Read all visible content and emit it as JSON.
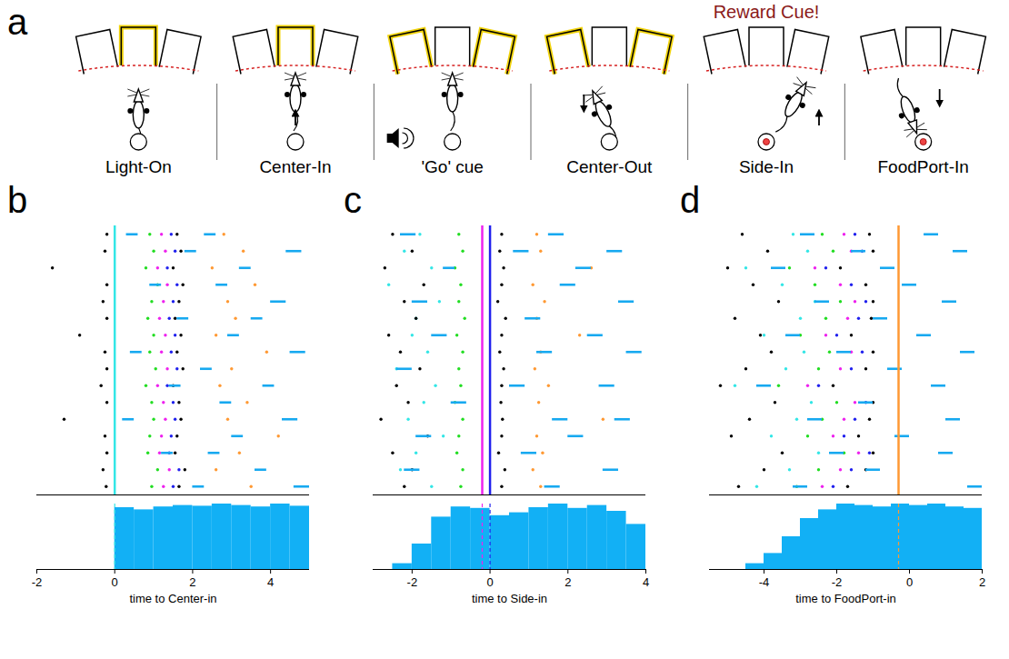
{
  "diagram": {
    "letter": "a",
    "phases": [
      "Light-On",
      "Center-In",
      "'Go' cue",
      "Center-Out",
      "Side-In",
      "FoodPort-In"
    ],
    "annotation": {
      "text": "Reward Cue!",
      "color": "#8b1a1a",
      "over": "Side-In"
    }
  },
  "chart_data": [
    {
      "type": "raster",
      "letter": "b",
      "xlabel": "time to Center-in",
      "xlim": [
        -2,
        5
      ],
      "xticks": [
        -2,
        0,
        2,
        4
      ],
      "tick_labels": "x",
      "lines": [
        {
          "x": 0,
          "color": "#33e6e6"
        }
      ],
      "series": [
        {
          "color": "#000000",
          "marker": "dot",
          "values": [
            -0.2,
            -0.25,
            -1.6,
            -0.2,
            -0.3,
            -0.2,
            -0.9,
            -0.25,
            -0.2,
            -0.35,
            -0.2,
            -1.3,
            -0.25,
            -0.2,
            -0.3,
            -0.22
          ]
        },
        {
          "color": "#22dd22",
          "marker": "dot",
          "values": [
            0.9,
            1.0,
            0.8,
            1.1,
            0.95,
            0.85,
            1.0,
            0.9,
            1.05,
            0.8,
            0.95,
            1.0,
            0.9,
            0.85,
            1.1,
            0.95
          ]
        },
        {
          "color": "#ee22ee",
          "marker": "dot",
          "values": [
            1.2,
            1.3,
            1.1,
            1.35,
            1.25,
            1.15,
            1.3,
            1.2,
            1.35,
            1.1,
            1.25,
            1.3,
            1.2,
            1.15,
            1.4,
            1.25
          ]
        },
        {
          "color": "#2020ee",
          "marker": "dot",
          "values": [
            1.45,
            1.55,
            1.35,
            1.6,
            1.5,
            1.4,
            1.55,
            1.45,
            1.6,
            1.35,
            1.5,
            1.55,
            1.45,
            1.4,
            1.65,
            1.5
          ]
        },
        {
          "color": "#000000",
          "marker": "dot",
          "values": [
            1.6,
            1.7,
            1.5,
            1.75,
            1.65,
            1.55,
            1.7,
            1.6,
            1.75,
            1.5,
            1.65,
            1.7,
            1.6,
            1.55,
            1.8,
            1.65
          ]
        },
        {
          "color": "#ff9933",
          "marker": "dot",
          "values": [
            2.8,
            3.3,
            2.5,
            3.6,
            2.9,
            3.1,
            2.6,
            3.9,
            3.0,
            2.7,
            3.4,
            2.9,
            4.2,
            3.2,
            2.6,
            3.5
          ]
        }
      ],
      "segments": {
        "color": "#17a9f0",
        "trial": [
          0,
          0,
          1,
          1,
          2,
          3,
          3,
          4,
          5,
          5,
          6,
          7,
          7,
          8,
          9,
          9,
          10,
          11,
          11,
          12,
          13,
          13,
          14,
          15,
          15
        ],
        "start": [
          0.3,
          2.3,
          1.8,
          4.4,
          3.2,
          0.9,
          2.6,
          4.0,
          1.6,
          3.5,
          2.9,
          0.4,
          4.5,
          2.2,
          1.4,
          3.8,
          2.7,
          0.2,
          4.3,
          3.0,
          1.2,
          2.4,
          3.6,
          2.0,
          4.6
        ],
        "end": [
          0.6,
          2.6,
          2.1,
          4.8,
          3.5,
          1.2,
          2.9,
          4.4,
          1.9,
          3.8,
          3.2,
          0.7,
          4.9,
          2.5,
          1.7,
          4.1,
          3.0,
          0.5,
          4.7,
          3.3,
          1.5,
          2.7,
          3.9,
          2.3,
          5.0
        ]
      },
      "histogram": {
        "color": "#12b0f5",
        "bins": [
          -2,
          -1.5,
          -1,
          -0.5,
          0,
          0.5,
          1,
          1.5,
          2,
          2.5,
          3,
          3.5,
          4,
          4.5,
          5
        ],
        "counts": [
          0,
          0,
          0,
          0,
          0.85,
          0.82,
          0.86,
          0.88,
          0.87,
          0.9,
          0.88,
          0.86,
          0.9,
          0.87
        ]
      }
    },
    {
      "type": "raster",
      "letter": "c",
      "xlabel": "time to Side-in",
      "xlim": [
        -3,
        4
      ],
      "xticks": [
        -2,
        0,
        2,
        4
      ],
      "tick_labels": "x",
      "lines": [
        {
          "x": -0.2,
          "color": "#ee22ee"
        },
        {
          "x": 0,
          "color": "#2020ee"
        }
      ],
      "series": [
        {
          "color": "#33e6e6",
          "marker": "dot",
          "values": [
            -1.8,
            -2.2,
            -1.5,
            -2.6,
            -1.3,
            -1.9,
            -2.0,
            -1.6,
            -2.4,
            -1.4,
            -1.7,
            -2.1,
            -1.2,
            -1.9,
            -2.3,
            -1.5
          ]
        },
        {
          "color": "#000000",
          "marker": "dot",
          "values": [
            -2.5,
            -2.0,
            -2.7,
            -1.7,
            -2.2,
            -1.9,
            -2.6,
            -2.3,
            -1.8,
            -2.4,
            -2.1,
            -2.8,
            -1.6,
            -2.5,
            -2.0,
            -2.2
          ]
        },
        {
          "color": "#22dd22",
          "marker": "dot",
          "values": [
            -0.8,
            -0.7,
            -0.9,
            -0.75,
            -0.8,
            -0.65,
            -0.85,
            -0.7,
            -0.8,
            -0.75,
            -0.9,
            -0.7,
            -0.8,
            -0.85,
            -0.7,
            -0.75
          ]
        },
        {
          "color": "#000000",
          "marker": "dot",
          "values": [
            0.3,
            0.25,
            0.35,
            0.3,
            0.2,
            0.4,
            0.3,
            0.25,
            0.35,
            0.3,
            0.28,
            0.32,
            0.3,
            0.22,
            0.38,
            0.3
          ]
        },
        {
          "color": "#ff9933",
          "marker": "dot",
          "values": [
            1.2,
            1.3,
            2.6,
            1.1,
            1.4,
            1.2,
            2.3,
            1.3,
            1.15,
            1.5,
            1.25,
            2.9,
            1.2,
            1.35,
            1.1,
            1.3
          ]
        }
      ],
      "segments": {
        "color": "#17a9f0",
        "trial": [
          0,
          0,
          1,
          1,
          2,
          2,
          3,
          4,
          4,
          5,
          6,
          6,
          7,
          7,
          8,
          9,
          9,
          10,
          11,
          11,
          12,
          12,
          13,
          14,
          14,
          15
        ],
        "start": [
          -2.3,
          1.5,
          0.6,
          3.0,
          -1.2,
          2.2,
          1.8,
          -2.0,
          3.3,
          0.9,
          -1.5,
          2.5,
          1.2,
          3.5,
          -2.4,
          0.5,
          2.8,
          -1.0,
          1.6,
          3.2,
          -1.9,
          2.0,
          0.8,
          -2.2,
          2.9,
          1.4
        ],
        "end": [
          -1.9,
          1.9,
          1.0,
          3.4,
          -0.9,
          2.6,
          2.2,
          -1.6,
          3.7,
          1.3,
          -1.1,
          2.9,
          1.6,
          3.9,
          -2.0,
          0.9,
          3.2,
          -0.6,
          2.0,
          3.6,
          -1.5,
          2.4,
          1.2,
          -1.8,
          3.3,
          1.8
        ]
      },
      "histogram": {
        "color": "#12b0f5",
        "bins": [
          -3,
          -2.5,
          -2,
          -1.5,
          -1,
          -0.5,
          0,
          0.5,
          1,
          1.5,
          2,
          2.5,
          3,
          3.5,
          4
        ],
        "counts": [
          0,
          0.08,
          0.35,
          0.72,
          0.86,
          0.84,
          0.74,
          0.78,
          0.85,
          0.9,
          0.84,
          0.88,
          0.8,
          0.62
        ]
      }
    },
    {
      "type": "raster",
      "letter": "d",
      "xlabel": "time to FoodPort-in",
      "xlim": [
        -5.5,
        2
      ],
      "xticks": [
        -4,
        -2,
        0,
        2
      ],
      "tick_labels": "x",
      "lines": [
        {
          "x": -0.3,
          "color": "#ff9933"
        }
      ],
      "series": [
        {
          "color": "#33e6e6",
          "marker": "dot",
          "values": [
            -3.2,
            -2.8,
            -4.5,
            -3.5,
            -2.6,
            -3.0,
            -4.0,
            -2.9,
            -3.4,
            -4.8,
            -2.7,
            -3.1,
            -3.8,
            -2.5,
            -3.3,
            -4.2
          ]
        },
        {
          "color": "#000000",
          "marker": "dot",
          "values": [
            -4.6,
            -3.9,
            -5.0,
            -4.3,
            -3.6,
            -4.8,
            -4.1,
            -3.8,
            -4.5,
            -5.2,
            -3.7,
            -4.4,
            -4.9,
            -3.5,
            -4.0,
            -4.7
          ]
        },
        {
          "color": "#22dd22",
          "marker": "dot",
          "values": [
            -2.4,
            -2.1,
            -3.3,
            -2.6,
            -1.9,
            -2.3,
            -3.0,
            -2.2,
            -2.5,
            -3.6,
            -2.0,
            -2.4,
            -2.8,
            -1.8,
            -2.5,
            -3.1
          ]
        },
        {
          "color": "#ee22ee",
          "marker": "dot",
          "values": [
            -1.8,
            -1.6,
            -2.6,
            -1.9,
            -1.5,
            -1.7,
            -2.3,
            -1.6,
            -1.9,
            -2.8,
            -1.5,
            -1.8,
            -2.1,
            -1.4,
            -1.9,
            -2.4
          ]
        },
        {
          "color": "#2020ee",
          "marker": "dot",
          "values": [
            -1.5,
            -1.3,
            -2.3,
            -1.6,
            -1.2,
            -1.4,
            -2.0,
            -1.3,
            -1.6,
            -2.5,
            -1.2,
            -1.5,
            -1.8,
            -1.1,
            -1.6,
            -2.1
          ]
        },
        {
          "color": "#000000",
          "marker": "dot",
          "values": [
            -1.1,
            -1.0,
            -1.9,
            -1.2,
            -1.0,
            -1.05,
            -1.6,
            -1.0,
            -1.2,
            -2.1,
            -1.0,
            -1.1,
            -1.4,
            -1.0,
            -1.2,
            -1.7
          ]
        }
      ],
      "segments": {
        "color": "#17a9f0",
        "trial": [
          0,
          0,
          1,
          1,
          2,
          2,
          3,
          4,
          4,
          5,
          6,
          6,
          7,
          7,
          8,
          9,
          9,
          10,
          11,
          11,
          12,
          13,
          13,
          14,
          15,
          15
        ],
        "start": [
          -3.0,
          0.4,
          -1.6,
          1.2,
          -3.8,
          -0.8,
          -0.2,
          -2.6,
          0.9,
          -1.0,
          -3.4,
          0.2,
          -2.0,
          1.4,
          -0.6,
          -4.2,
          0.6,
          -1.4,
          -2.8,
          1.0,
          -0.4,
          -2.2,
          0.8,
          -1.2,
          -3.2,
          1.6
        ],
        "end": [
          -2.6,
          0.8,
          -1.2,
          1.6,
          -3.4,
          -0.4,
          0.2,
          -2.2,
          1.3,
          -0.6,
          -3.0,
          0.6,
          -1.6,
          1.8,
          -0.2,
          -3.8,
          1.0,
          -1.0,
          -2.4,
          1.4,
          0.0,
          -1.8,
          1.2,
          -0.8,
          -2.8,
          2.0
        ]
      },
      "histogram": {
        "color": "#12b0f5",
        "bins": [
          -5.5,
          -5,
          -4.5,
          -4,
          -3.5,
          -3,
          -2.5,
          -2,
          -1.5,
          -1,
          -0.5,
          0,
          0.5,
          1,
          1.5,
          2
        ],
        "counts": [
          0,
          0,
          0.08,
          0.22,
          0.45,
          0.7,
          0.82,
          0.9,
          0.88,
          0.86,
          0.9,
          0.88,
          0.9,
          0.86,
          0.84
        ]
      }
    }
  ]
}
